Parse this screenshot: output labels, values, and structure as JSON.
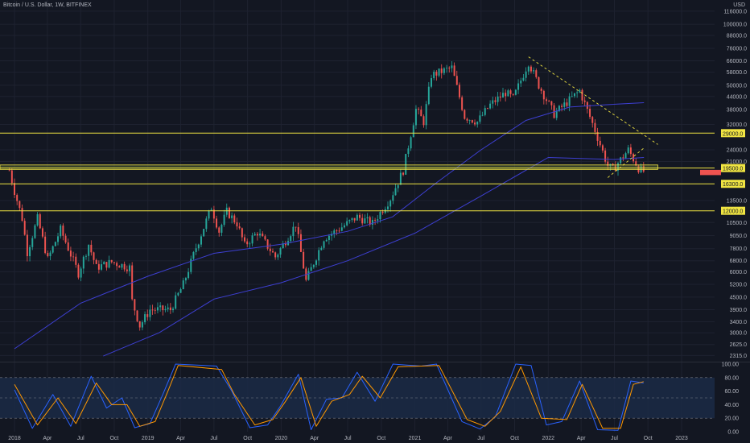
{
  "header": {
    "symbol_title": "Bitcoin / U.S. Dollar, 1W, BITFINEX",
    "currency": "USD"
  },
  "colors": {
    "background": "#131722",
    "grid": "#1e2230",
    "up": "#26a69a",
    "down": "#ef5350",
    "level_line": "#f0e442",
    "ma_line": "#3d3fd1",
    "stoch_k": "#2962ff",
    "stoch_d": "#ff9800",
    "stoch_band": "#1b2a45",
    "text": "#b2b5be",
    "label_bg": "#f0e442",
    "price_tag": "#ef5350"
  },
  "chart_data": [
    {
      "type": "candlestick",
      "title": "Bitcoin / U.S. Dollar, 1W, BITFINEX",
      "yscale": "log",
      "ylim": [
        2200,
        118000
      ],
      "y_ticks": [
        116000.0,
        100000.0,
        88000.0,
        76000.0,
        66000.0,
        58000.0,
        50000.0,
        44000.0,
        38000.0,
        32000.0,
        24000.0,
        21000.0,
        13500.0,
        10500.0,
        9050.0,
        7800.0,
        6800.0,
        6000.0,
        5200.0,
        4500.0,
        3900.0,
        3400.0,
        3000.0,
        2625.0,
        2315.0
      ],
      "y_tick_labels": [
        "116000.0",
        "100000.0",
        "88000.0",
        "76000.0",
        "66000.0",
        "58000.0",
        "50000.0",
        "44000.0",
        "38000.0",
        "32000.0",
        "24000.0",
        "21000.0",
        "13500.0",
        "10500.0",
        "9050.0",
        "7800.0",
        "6800.0",
        "6000.0",
        "5200.0",
        "4500.0",
        "3900.0",
        "3400.0",
        "3000.0",
        "2625.0",
        "2315.0"
      ],
      "x_range": [
        "2018-01-01",
        "2023-02-01"
      ],
      "x_ticks": [
        {
          "date": "2018-01-01",
          "label": "2018"
        },
        {
          "date": "2018-04-01",
          "label": "Apr"
        },
        {
          "date": "2018-07-01",
          "label": "Jul"
        },
        {
          "date": "2018-10-01",
          "label": "Oct"
        },
        {
          "date": "2019-01-01",
          "label": "2019"
        },
        {
          "date": "2019-04-01",
          "label": "Apr"
        },
        {
          "date": "2019-07-01",
          "label": "Jul"
        },
        {
          "date": "2019-10-01",
          "label": "Oct"
        },
        {
          "date": "2020-01-01",
          "label": "2020"
        },
        {
          "date": "2020-04-01",
          "label": "Apr"
        },
        {
          "date": "2020-07-01",
          "label": "Jul"
        },
        {
          "date": "2020-10-01",
          "label": "Oct"
        },
        {
          "date": "2021-01-01",
          "label": "2021"
        },
        {
          "date": "2021-04-01",
          "label": "Apr"
        },
        {
          "date": "2021-07-01",
          "label": "Jul"
        },
        {
          "date": "2021-10-01",
          "label": "Oct"
        },
        {
          "date": "2022-01-01",
          "label": "2022"
        },
        {
          "date": "2022-04-01",
          "label": "Apr"
        },
        {
          "date": "2022-07-01",
          "label": "Jul"
        },
        {
          "date": "2022-10-01",
          "label": "Oct"
        },
        {
          "date": "2023-01-01",
          "label": "2023"
        }
      ],
      "close_anchors": [
        [
          "2017-12-18",
          19000
        ],
        [
          "2018-01-01",
          15000
        ],
        [
          "2018-01-22",
          11000
        ],
        [
          "2018-02-05",
          7500
        ],
        [
          "2018-03-05",
          11000
        ],
        [
          "2018-04-02",
          6900
        ],
        [
          "2018-05-07",
          9700
        ],
        [
          "2018-06-25",
          5900
        ],
        [
          "2018-07-23",
          8200
        ],
        [
          "2018-08-13",
          6300
        ],
        [
          "2018-09-24",
          6700
        ],
        [
          "2018-11-12",
          6300
        ],
        [
          "2018-11-19",
          4300
        ],
        [
          "2018-12-10",
          3250
        ],
        [
          "2019-01-07",
          3900
        ],
        [
          "2019-03-04",
          3900
        ],
        [
          "2019-04-08",
          5200
        ],
        [
          "2019-05-13",
          7900
        ],
        [
          "2019-06-24",
          12500
        ],
        [
          "2019-07-15",
          9500
        ],
        [
          "2019-08-05",
          11900
        ],
        [
          "2019-09-02",
          10400
        ],
        [
          "2019-09-23",
          8100
        ],
        [
          "2019-10-28",
          9400
        ],
        [
          "2019-12-16",
          7100
        ],
        [
          "2020-02-10",
          10300
        ],
        [
          "2020-03-09",
          5400
        ],
        [
          "2020-04-27",
          8800
        ],
        [
          "2020-06-01",
          9600
        ],
        [
          "2020-07-27",
          11200
        ],
        [
          "2020-09-07",
          10400
        ],
        [
          "2020-10-26",
          13800
        ],
        [
          "2020-11-30",
          19000
        ],
        [
          "2021-01-04",
          38000
        ],
        [
          "2021-01-25",
          33000
        ],
        [
          "2021-02-15",
          56000
        ],
        [
          "2021-04-12",
          61000
        ],
        [
          "2021-05-17",
          35000
        ],
        [
          "2021-06-21",
          33000
        ],
        [
          "2021-07-26",
          40000
        ],
        [
          "2021-09-06",
          46000
        ],
        [
          "2021-09-27",
          43000
        ],
        [
          "2021-11-08",
          65000
        ],
        [
          "2021-12-06",
          50000
        ],
        [
          "2022-01-17",
          36000
        ],
        [
          "2022-03-28",
          47000
        ],
        [
          "2022-05-09",
          30000
        ],
        [
          "2022-06-13",
          20000
        ],
        [
          "2022-06-27",
          19200
        ],
        [
          "2022-08-08",
          24000
        ],
        [
          "2022-09-05",
          19500
        ],
        [
          "2022-09-19",
          18800
        ]
      ],
      "moving_averages": [
        {
          "name": "",
          "points": [
            [
              "2018-09-01",
              2300
            ],
            [
              "2019-02-01",
              3000
            ],
            [
              "2019-07-01",
              4400
            ],
            [
              "2020-01-01",
              5300
            ],
            [
              "2020-07-01",
              6800
            ],
            [
              "2021-01-01",
              9300
            ],
            [
              "2021-07-01",
              14200
            ],
            [
              "2022-01-01",
              22000
            ],
            [
              "2022-07-01",
              21500
            ],
            [
              "2022-09-20",
              22000
            ]
          ]
        },
        {
          "name": "",
          "points": [
            [
              "2018-01-01",
              2500
            ],
            [
              "2018-07-01",
              4200
            ],
            [
              "2019-01-01",
              5700
            ],
            [
              "2019-07-01",
              7400
            ],
            [
              "2020-01-01",
              8200
            ],
            [
              "2020-07-01",
              9500
            ],
            [
              "2020-11-01",
              11200
            ],
            [
              "2021-03-01",
              16500
            ],
            [
              "2021-07-01",
              24000
            ],
            [
              "2021-11-01",
              33500
            ],
            [
              "2022-03-01",
              39000
            ],
            [
              "2022-06-01",
              40000
            ],
            [
              "2022-09-20",
              41000
            ]
          ]
        }
      ],
      "horizontal_levels": [
        {
          "value": 29000,
          "label": "29000.0"
        },
        {
          "value": 19500,
          "label": "19500.0"
        },
        {
          "value": 16300,
          "label": "16300.0"
        },
        {
          "value": 12000,
          "label": "12000.0"
        }
      ],
      "zone": {
        "from": 19200,
        "to": 20200
      },
      "price_tag": {
        "from": 18000,
        "to": 19100
      },
      "trendlines": [
        {
          "style": "dashed",
          "from": [
            "2021-11-08",
            69000
          ],
          "to": [
            "2022-10-28",
            25500
          ]
        },
        {
          "style": "dashed",
          "from": [
            "2022-06-13",
            17500
          ],
          "to": [
            "2022-09-20",
            24500
          ]
        }
      ]
    },
    {
      "type": "line",
      "title": "",
      "ylim": [
        0,
        100
      ],
      "y_ticks": [
        100.0,
        80.0,
        60.0,
        40.0,
        20.0,
        0.0
      ],
      "y_tick_labels": [
        "100.00",
        "80.00",
        "60.00",
        "40.00",
        "20.00",
        "0.00"
      ],
      "band": [
        20,
        80
      ],
      "series": [
        {
          "name": "",
          "color": "#2962ff",
          "anchors": [
            [
              "2018-01-01",
              62
            ],
            [
              "2018-02-19",
              5
            ],
            [
              "2018-04-16",
              55
            ],
            [
              "2018-06-04",
              8
            ],
            [
              "2018-07-30",
              82
            ],
            [
              "2018-09-10",
              35
            ],
            [
              "2018-10-22",
              50
            ],
            [
              "2018-11-26",
              6
            ],
            [
              "2019-01-07",
              12
            ],
            [
              "2019-02-11",
              55
            ],
            [
              "2019-03-18",
              100
            ],
            [
              "2019-07-08",
              97
            ],
            [
              "2019-08-19",
              60
            ],
            [
              "2019-10-07",
              6
            ],
            [
              "2019-11-25",
              10
            ],
            [
              "2019-12-30",
              38
            ],
            [
              "2020-02-17",
              85
            ],
            [
              "2020-03-23",
              3
            ],
            [
              "2020-05-04",
              48
            ],
            [
              "2020-06-15",
              50
            ],
            [
              "2020-07-27",
              88
            ],
            [
              "2020-09-14",
              45
            ],
            [
              "2020-11-02",
              100
            ],
            [
              "2021-01-18",
              97
            ],
            [
              "2021-03-01",
              100
            ],
            [
              "2021-05-10",
              15
            ],
            [
              "2021-06-28",
              4
            ],
            [
              "2021-08-09",
              22
            ],
            [
              "2021-10-04",
              100
            ],
            [
              "2021-11-15",
              98
            ],
            [
              "2021-12-27",
              10
            ],
            [
              "2022-02-07",
              15
            ],
            [
              "2022-03-28",
              75
            ],
            [
              "2022-05-16",
              3
            ],
            [
              "2022-07-11",
              2
            ],
            [
              "2022-08-15",
              75
            ],
            [
              "2022-09-19",
              72
            ]
          ]
        },
        {
          "name": "",
          "color": "#ff9800",
          "anchors": [
            [
              "2018-01-01",
              70
            ],
            [
              "2018-03-05",
              10
            ],
            [
              "2018-04-30",
              50
            ],
            [
              "2018-06-18",
              12
            ],
            [
              "2018-08-13",
              72
            ],
            [
              "2018-09-24",
              40
            ],
            [
              "2018-11-05",
              40
            ],
            [
              "2018-12-10",
              8
            ],
            [
              "2019-01-21",
              15
            ],
            [
              "2019-02-25",
              60
            ],
            [
              "2019-03-25",
              98
            ],
            [
              "2019-07-22",
              92
            ],
            [
              "2019-08-26",
              55
            ],
            [
              "2019-10-21",
              10
            ],
            [
              "2019-12-09",
              18
            ],
            [
              "2020-01-13",
              45
            ],
            [
              "2020-02-24",
              80
            ],
            [
              "2020-04-06",
              8
            ],
            [
              "2020-05-18",
              45
            ],
            [
              "2020-07-06",
              55
            ],
            [
              "2020-08-10",
              82
            ],
            [
              "2020-09-28",
              50
            ],
            [
              "2020-11-16",
              96
            ],
            [
              "2021-03-08",
              98
            ],
            [
              "2021-05-24",
              18
            ],
            [
              "2021-07-12",
              8
            ],
            [
              "2021-08-23",
              30
            ],
            [
              "2021-10-18",
              96
            ],
            [
              "2021-12-13",
              20
            ],
            [
              "2022-02-21",
              18
            ],
            [
              "2022-04-04",
              70
            ],
            [
              "2022-05-30",
              5
            ],
            [
              "2022-07-18",
              5
            ],
            [
              "2022-08-22",
              70
            ],
            [
              "2022-09-19",
              74
            ]
          ]
        }
      ]
    }
  ]
}
